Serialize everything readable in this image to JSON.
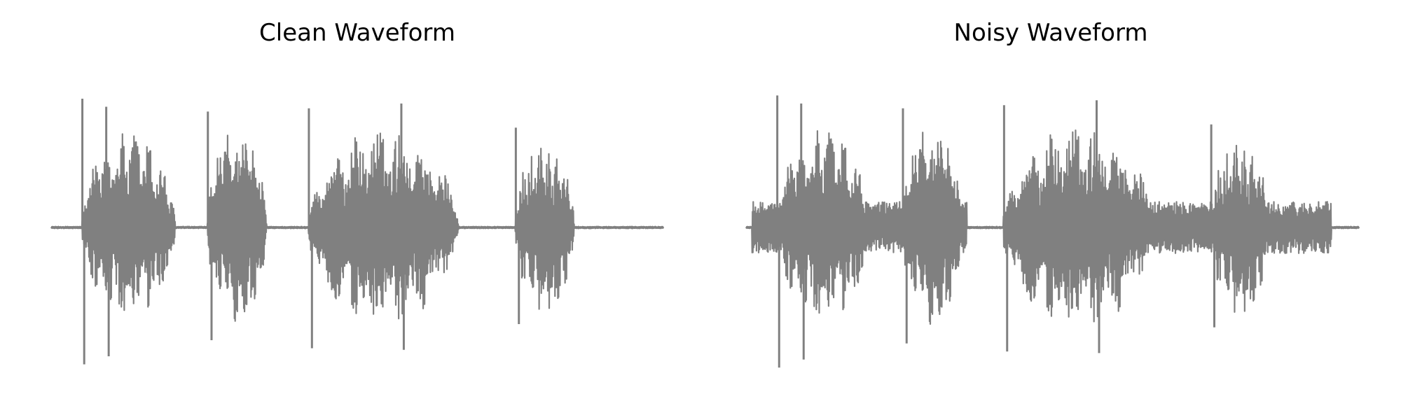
{
  "chart_data": [
    {
      "type": "line",
      "title": "Clean Waveform",
      "xlabel": "",
      "ylabel": "",
      "axes_visible": false,
      "grid": false,
      "legend": "none",
      "ylim": [
        -1,
        1
      ],
      "color": "#808080",
      "bursts": [
        {
          "start": 0.05,
          "end": 0.215,
          "amp": 0.6
        },
        {
          "start": 0.255,
          "end": 0.36,
          "amp": 0.62
        },
        {
          "start": 0.42,
          "end": 0.685,
          "amp": 0.62
        },
        {
          "start": 0.758,
          "end": 0.862,
          "amp": 0.55
        }
      ],
      "spikes": [
        {
          "x": 0.051,
          "y": 0.8
        },
        {
          "x": 0.054,
          "y": -0.85
        },
        {
          "x": 0.09,
          "y": 0.75
        },
        {
          "x": 0.094,
          "y": -0.8
        },
        {
          "x": 0.256,
          "y": 0.72
        },
        {
          "x": 0.262,
          "y": -0.7
        },
        {
          "x": 0.421,
          "y": 0.74
        },
        {
          "x": 0.426,
          "y": -0.75
        },
        {
          "x": 0.572,
          "y": 0.77
        },
        {
          "x": 0.576,
          "y": -0.76
        },
        {
          "x": 0.759,
          "y": 0.62
        },
        {
          "x": 0.764,
          "y": -0.6
        }
      ],
      "noise_floor": 0.01
    },
    {
      "type": "line",
      "title": "Noisy Waveform",
      "xlabel": "",
      "ylabel": "",
      "axes_visible": false,
      "grid": false,
      "legend": "none",
      "ylim": [
        -1,
        1
      ],
      "color": "#808080",
      "bursts": [
        {
          "start": 0.05,
          "end": 0.215,
          "amp": 0.62
        },
        {
          "start": 0.255,
          "end": 0.36,
          "amp": 0.64
        },
        {
          "start": 0.42,
          "end": 0.685,
          "amp": 0.64
        },
        {
          "start": 0.758,
          "end": 0.862,
          "amp": 0.57
        }
      ],
      "spikes": [
        {
          "x": 0.051,
          "y": 0.82
        },
        {
          "x": 0.054,
          "y": -0.87
        },
        {
          "x": 0.09,
          "y": 0.77
        },
        {
          "x": 0.094,
          "y": -0.82
        },
        {
          "x": 0.256,
          "y": 0.74
        },
        {
          "x": 0.262,
          "y": -0.72
        },
        {
          "x": 0.421,
          "y": 0.76
        },
        {
          "x": 0.426,
          "y": -0.77
        },
        {
          "x": 0.572,
          "y": 0.79
        },
        {
          "x": 0.576,
          "y": -0.78
        },
        {
          "x": 0.759,
          "y": 0.64
        },
        {
          "x": 0.764,
          "y": -0.62
        }
      ],
      "noise_floor": 0.16,
      "noise_segments": [
        {
          "start": 0.01,
          "end": 0.36
        },
        {
          "start": 0.42,
          "end": 0.955
        }
      ]
    }
  ]
}
